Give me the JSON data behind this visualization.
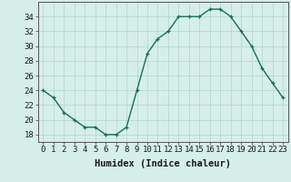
{
  "x": [
    0,
    1,
    2,
    3,
    4,
    5,
    6,
    7,
    8,
    9,
    10,
    11,
    12,
    13,
    14,
    15,
    16,
    17,
    18,
    19,
    20,
    21,
    22,
    23
  ],
  "y": [
    24,
    23,
    21,
    20,
    19,
    19,
    18,
    18,
    19,
    24,
    29,
    31,
    32,
    34,
    34,
    34,
    35,
    35,
    34,
    32,
    30,
    27,
    25,
    23
  ],
  "line_color": "#1a6b5a",
  "marker": "+",
  "bg_color": "#d6eeea",
  "grid_color": "#b8d8d0",
  "xlabel": "Humidex (Indice chaleur)",
  "xlim": [
    -0.5,
    23.5
  ],
  "ylim": [
    17,
    36
  ],
  "yticks": [
    18,
    20,
    22,
    24,
    26,
    28,
    30,
    32,
    34
  ],
  "xticks": [
    0,
    1,
    2,
    3,
    4,
    5,
    6,
    7,
    8,
    9,
    10,
    11,
    12,
    13,
    14,
    15,
    16,
    17,
    18,
    19,
    20,
    21,
    22,
    23
  ],
  "xtick_labels": [
    "0",
    "1",
    "2",
    "3",
    "4",
    "5",
    "6",
    "7",
    "8",
    "9",
    "10",
    "11",
    "12",
    "13",
    "14",
    "15",
    "16",
    "17",
    "18",
    "19",
    "20",
    "21",
    "22",
    "23"
  ],
  "font_size": 6.5,
  "xlabel_fontsize": 7.5,
  "linewidth": 1.0,
  "markersize": 3.5,
  "markeredgewidth": 0.9
}
